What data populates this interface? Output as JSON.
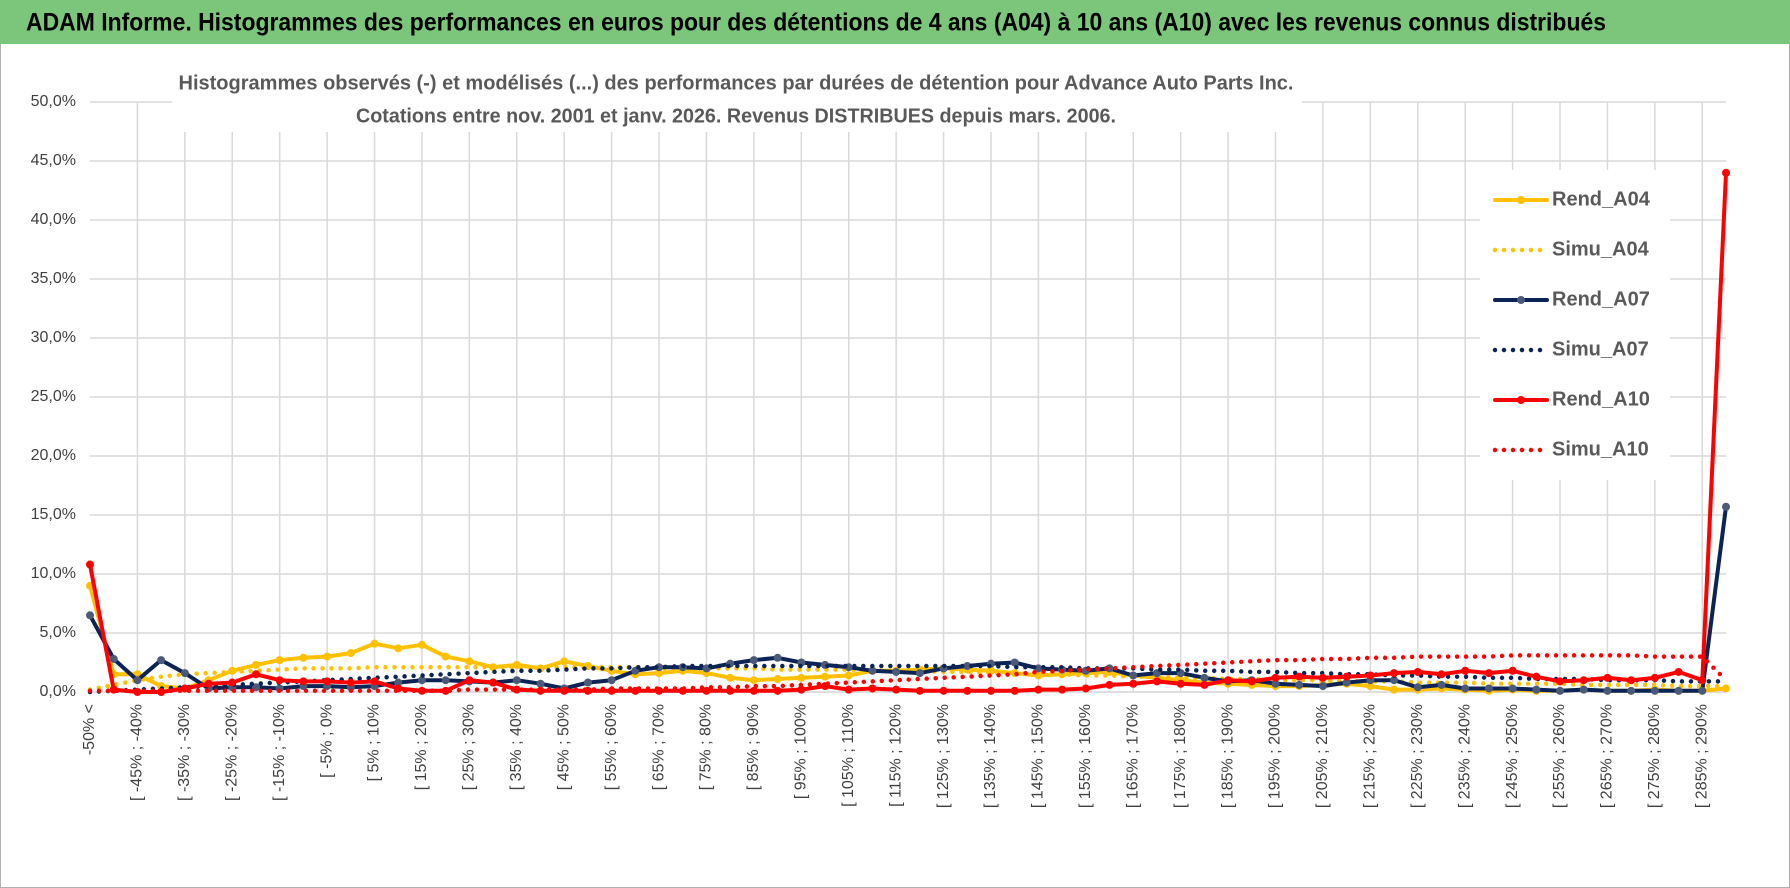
{
  "header": "ADAM Informe. Histogrammes des performances en euros pour des détentions de 4 ans (A04) à 10 ans (A10) avec les revenus connus distribués",
  "chart_data": {
    "type": "line",
    "title": "Histogrammes observés (-) et modélisés (...) des performances par durées de détention pour Advance Auto Parts Inc.",
    "subtitle": "Cotations entre nov. 2001 et janv. 2026. Revenus DISTRIBUES depuis mars. 2006.",
    "categories": [
      "-50% <",
      null,
      "[ -45% ; -40%",
      null,
      "[ -35% ; -30%",
      null,
      "[ -25% ; -20%",
      null,
      "[ -15% ; -10%",
      null,
      "[ -5% ; 0%",
      null,
      "[ 5% ; 10%",
      null,
      "[ 15% ; 20%",
      null,
      "[ 25% ; 30%",
      null,
      "[ 35% ; 40%",
      null,
      "[ 45% ; 50%",
      null,
      "[ 55% ; 60%",
      null,
      "[ 65% ; 70%",
      null,
      "[ 75% ; 80%",
      null,
      "[ 85% ; 90%",
      null,
      "[ 95% ; 100%",
      null,
      "[ 105% ; 110%",
      null,
      "[ 115% ; 120%",
      null,
      "[ 125% ; 130%",
      null,
      "[ 135% ; 140%",
      null,
      "[ 145% ; 150%",
      null,
      "[ 155% ; 160%",
      null,
      "[ 165% ; 170%",
      null,
      "[ 175% ; 180%",
      null,
      "[ 185% ; 190%",
      null,
      "[ 195% ; 200%",
      null,
      "[ 205% ; 210%",
      null,
      "[ 215% ; 220%",
      null,
      "[ 225% ; 230%",
      null,
      "[ 235% ; 240%",
      null,
      "[ 245% ; 250%",
      null,
      "[ 255% ; 260%",
      null,
      "[ 265% ; 270%",
      null,
      "[ 275% ; 280%",
      null,
      "[ 285% ; 290%",
      null
    ],
    "ylim": [
      0,
      50
    ],
    "yticks": [
      {
        "value": 0,
        "label": "0,0%"
      },
      {
        "value": 5,
        "label": "5,0%"
      },
      {
        "value": 10,
        "label": "10,0%"
      },
      {
        "value": 15,
        "label": "15,0%"
      },
      {
        "value": 20,
        "label": "20,0%"
      },
      {
        "value": 25,
        "label": "25,0%"
      },
      {
        "value": 30,
        "label": "30,0%"
      },
      {
        "value": 35,
        "label": "35,0%"
      },
      {
        "value": 40,
        "label": "40,0%"
      },
      {
        "value": 45,
        "label": "45,0%"
      },
      {
        "value": 50,
        "label": "50,0%"
      }
    ],
    "grid": true,
    "legend": "right",
    "series": [
      {
        "name": "Rend_A04",
        "color": "#ffc000",
        "style": "solid",
        "marker": true,
        "values": [
          9.0,
          1.5,
          1.5,
          0.5,
          0.3,
          1.0,
          1.8,
          2.3,
          2.7,
          2.9,
          3.0,
          3.3,
          4.1,
          3.7,
          4.0,
          3.0,
          2.6,
          2.1,
          2.3,
          2.0,
          2.6,
          2.2,
          1.8,
          1.5,
          1.6,
          1.8,
          1.6,
          1.2,
          1.0,
          1.1,
          1.2,
          1.3,
          1.4,
          1.8,
          1.8,
          1.9,
          2.0,
          1.9,
          1.8,
          1.6,
          1.4,
          1.5,
          1.6,
          1.7,
          1.4,
          1.2,
          1.0,
          0.8,
          0.7,
          0.6,
          0.5,
          0.5,
          0.6,
          0.7,
          0.5,
          0.2,
          0.2,
          0.3,
          0.2,
          0.1,
          0.2,
          0.1,
          0.1,
          0.2,
          0.1,
          0.1,
          0.2,
          0.1,
          0.1,
          0.3
        ]
      },
      {
        "name": "Simu_A04",
        "color": "#ffc000",
        "style": "dotted",
        "marker": false,
        "values": [
          0.2,
          0.6,
          1.0,
          1.3,
          1.5,
          1.6,
          1.7,
          1.8,
          1.9,
          2.0,
          2.0,
          2.0,
          2.1,
          2.1,
          2.1,
          2.1,
          2.1,
          2.1,
          2.1,
          2.1,
          2.1,
          2.1,
          2.1,
          2.1,
          2.0,
          2.0,
          2.0,
          2.0,
          2.0,
          1.9,
          1.9,
          1.9,
          1.9,
          1.8,
          1.8,
          1.8,
          1.7,
          1.7,
          1.6,
          1.6,
          1.5,
          1.5,
          1.4,
          1.4,
          1.3,
          1.3,
          1.2,
          1.2,
          1.1,
          1.1,
          1.0,
          1.0,
          1.0,
          0.9,
          0.9,
          0.9,
          0.8,
          0.8,
          0.8,
          0.7,
          0.7,
          0.7,
          0.7,
          0.6,
          0.6,
          0.6,
          0.6,
          0.5,
          0.5,
          0.5
        ]
      },
      {
        "name": "Rend_A07",
        "color": "#0c2356",
        "style": "solid",
        "marker": true,
        "values": [
          6.5,
          2.8,
          1.0,
          2.7,
          1.6,
          0.3,
          0.4,
          0.4,
          0.3,
          0.5,
          0.5,
          0.4,
          0.5,
          0.8,
          1.0,
          1.0,
          0.9,
          0.8,
          1.0,
          0.7,
          0.3,
          0.8,
          1.0,
          1.8,
          2.1,
          2.1,
          2.0,
          2.4,
          2.7,
          2.9,
          2.5,
          2.3,
          2.1,
          1.8,
          1.7,
          1.6,
          2.0,
          2.2,
          2.4,
          2.5,
          2.0,
          1.9,
          1.8,
          2.0,
          1.4,
          1.6,
          1.6,
          1.2,
          0.9,
          1.0,
          0.7,
          0.6,
          0.5,
          0.8,
          1.0,
          1.0,
          0.4,
          0.6,
          0.3,
          0.3,
          0.3,
          0.2,
          0.1,
          0.2,
          0.1,
          0.1,
          0.1,
          0.1,
          0.1,
          15.7
        ]
      },
      {
        "name": "Simu_A07",
        "color": "#0c2356",
        "style": "dotted",
        "marker": false,
        "values": [
          0.0,
          0.1,
          0.2,
          0.3,
          0.4,
          0.5,
          0.6,
          0.7,
          0.8,
          0.9,
          1.0,
          1.1,
          1.2,
          1.3,
          1.4,
          1.5,
          1.6,
          1.7,
          1.8,
          1.8,
          1.9,
          2.0,
          2.0,
          2.1,
          2.1,
          2.2,
          2.2,
          2.2,
          2.2,
          2.2,
          2.2,
          2.2,
          2.2,
          2.2,
          2.2,
          2.2,
          2.2,
          2.2,
          2.2,
          2.1,
          2.1,
          2.1,
          2.0,
          2.0,
          2.0,
          1.9,
          1.9,
          1.8,
          1.8,
          1.7,
          1.7,
          1.6,
          1.6,
          1.5,
          1.5,
          1.4,
          1.4,
          1.3,
          1.3,
          1.2,
          1.2,
          1.1,
          1.1,
          1.1,
          1.0,
          1.0,
          1.0,
          0.9,
          0.9,
          0.9
        ]
      },
      {
        "name": "Rend_A10",
        "color": "#ff0000",
        "style": "solid",
        "marker": true,
        "values": [
          10.8,
          0.2,
          0.0,
          0.0,
          0.3,
          0.7,
          0.8,
          1.5,
          1.0,
          0.9,
          0.9,
          0.8,
          0.9,
          0.3,
          0.1,
          0.1,
          1.0,
          0.8,
          0.2,
          0.1,
          0.1,
          0.1,
          0.1,
          0.1,
          0.1,
          0.1,
          0.1,
          0.1,
          0.1,
          0.1,
          0.2,
          0.5,
          0.2,
          0.3,
          0.2,
          0.1,
          0.1,
          0.1,
          0.1,
          0.1,
          0.2,
          0.2,
          0.3,
          0.6,
          0.7,
          0.9,
          0.7,
          0.6,
          1.0,
          0.9,
          1.2,
          1.3,
          1.2,
          1.3,
          1.4,
          1.6,
          1.7,
          1.5,
          1.8,
          1.6,
          1.8,
          1.3,
          0.9,
          1.0,
          1.2,
          1.0,
          1.2,
          1.7,
          1.0,
          44.0
        ]
      },
      {
        "name": "Simu_A10",
        "color": "#ff0000",
        "style": "dotted",
        "marker": false,
        "values": [
          0.1,
          0.1,
          0.1,
          0.1,
          0.1,
          0.1,
          0.1,
          0.1,
          0.1,
          0.1,
          0.1,
          0.1,
          0.1,
          0.1,
          0.1,
          0.1,
          0.2,
          0.2,
          0.2,
          0.2,
          0.2,
          0.2,
          0.3,
          0.3,
          0.3,
          0.3,
          0.4,
          0.4,
          0.5,
          0.5,
          0.6,
          0.7,
          0.8,
          0.9,
          1.0,
          1.1,
          1.2,
          1.3,
          1.4,
          1.5,
          1.7,
          1.8,
          1.9,
          2.0,
          2.1,
          2.2,
          2.3,
          2.4,
          2.5,
          2.6,
          2.7,
          2.7,
          2.8,
          2.8,
          2.9,
          2.9,
          3.0,
          3.0,
          3.0,
          3.0,
          3.1,
          3.1,
          3.1,
          3.1,
          3.1,
          3.1,
          3.0,
          3.0,
          3.0,
          1.0
        ]
      }
    ]
  }
}
